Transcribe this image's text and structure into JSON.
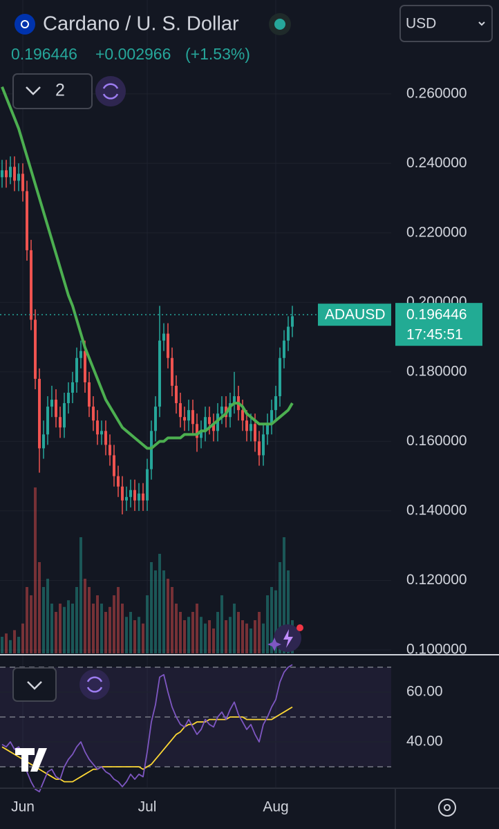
{
  "header": {
    "title": "Cardano / U. S. Dollar",
    "price": "0.196446",
    "change": "+0.002966",
    "change_pct": "(+1.53%)",
    "currency": "USD",
    "indicator_count": "2"
  },
  "chart_data": [
    {
      "type": "candlestick",
      "categories": [
        null,
        null,
        null,
        null,
        null,
        "Jun",
        null,
        null,
        null,
        null,
        null,
        null,
        null,
        null,
        null,
        null,
        null,
        null,
        null,
        null,
        null,
        null,
        null,
        null,
        null,
        null,
        null,
        null,
        null,
        null,
        null,
        null,
        null,
        null,
        null,
        "Jul",
        null,
        null,
        null,
        null,
        null,
        null,
        null,
        null,
        null,
        null,
        null,
        null,
        null,
        null,
        null,
        null,
        null,
        null,
        null,
        null,
        null,
        null,
        null,
        null,
        null,
        null,
        null,
        null,
        null,
        null,
        "Aug",
        null,
        null,
        null,
        null
      ],
      "candles": [
        [
          0.236,
          0.241,
          0.233,
          0.238
        ],
        [
          0.238,
          0.241,
          0.233,
          0.236
        ],
        [
          0.236,
          0.242,
          0.234,
          0.239
        ],
        [
          0.239,
          0.242,
          0.232,
          0.235
        ],
        [
          0.235,
          0.24,
          0.232,
          0.237
        ],
        [
          0.237,
          0.24,
          0.229,
          0.232
        ],
        [
          0.232,
          0.235,
          0.212,
          0.215
        ],
        [
          0.215,
          0.218,
          0.192,
          0.195
        ],
        [
          0.195,
          0.198,
          0.175,
          0.178
        ],
        [
          0.178,
          0.181,
          0.151,
          0.158
        ],
        [
          0.158,
          0.166,
          0.155,
          0.162
        ],
        [
          0.162,
          0.173,
          0.159,
          0.17
        ],
        [
          0.17,
          0.176,
          0.167,
          0.172
        ],
        [
          0.172,
          0.175,
          0.164,
          0.167
        ],
        [
          0.167,
          0.17,
          0.161,
          0.164
        ],
        [
          0.164,
          0.174,
          0.161,
          0.171
        ],
        [
          0.171,
          0.177,
          0.168,
          0.174
        ],
        [
          0.174,
          0.18,
          0.171,
          0.177
        ],
        [
          0.177,
          0.187,
          0.174,
          0.184
        ],
        [
          0.184,
          0.189,
          0.181,
          0.186
        ],
        [
          0.186,
          0.189,
          0.174,
          0.177
        ],
        [
          0.177,
          0.18,
          0.167,
          0.17
        ],
        [
          0.17,
          0.173,
          0.163,
          0.166
        ],
        [
          0.166,
          0.169,
          0.159,
          0.162
        ],
        [
          0.162,
          0.166,
          0.159,
          0.163
        ],
        [
          0.163,
          0.166,
          0.156,
          0.159
        ],
        [
          0.159,
          0.162,
          0.153,
          0.156
        ],
        [
          0.156,
          0.159,
          0.147,
          0.15
        ],
        [
          0.15,
          0.153,
          0.144,
          0.147
        ],
        [
          0.147,
          0.15,
          0.139,
          0.143
        ],
        [
          0.143,
          0.147,
          0.14,
          0.144
        ],
        [
          0.144,
          0.149,
          0.141,
          0.146
        ],
        [
          0.146,
          0.149,
          0.14,
          0.143
        ],
        [
          0.143,
          0.148,
          0.14,
          0.145
        ],
        [
          0.145,
          0.148,
          0.14,
          0.143
        ],
        [
          0.143,
          0.155,
          0.14,
          0.152
        ],
        [
          0.152,
          0.166,
          0.149,
          0.163
        ],
        [
          0.163,
          0.173,
          0.16,
          0.17
        ],
        [
          0.17,
          0.199,
          0.167,
          0.189
        ],
        [
          0.189,
          0.194,
          0.186,
          0.191
        ],
        [
          0.191,
          0.194,
          0.181,
          0.184
        ],
        [
          0.184,
          0.187,
          0.173,
          0.176
        ],
        [
          0.176,
          0.179,
          0.168,
          0.171
        ],
        [
          0.171,
          0.174,
          0.164,
          0.167
        ],
        [
          0.167,
          0.17,
          0.163,
          0.166
        ],
        [
          0.166,
          0.172,
          0.163,
          0.169
        ],
        [
          0.169,
          0.172,
          0.162,
          0.165
        ],
        [
          0.165,
          0.168,
          0.157,
          0.161
        ],
        [
          0.161,
          0.166,
          0.158,
          0.163
        ],
        [
          0.163,
          0.17,
          0.16,
          0.167
        ],
        [
          0.167,
          0.17,
          0.162,
          0.165
        ],
        [
          0.165,
          0.168,
          0.16,
          0.163
        ],
        [
          0.163,
          0.171,
          0.16,
          0.168
        ],
        [
          0.168,
          0.173,
          0.165,
          0.17
        ],
        [
          0.17,
          0.173,
          0.164,
          0.167
        ],
        [
          0.167,
          0.174,
          0.164,
          0.171
        ],
        [
          0.171,
          0.18,
          0.168,
          0.173
        ],
        [
          0.173,
          0.176,
          0.166,
          0.169
        ],
        [
          0.169,
          0.172,
          0.163,
          0.166
        ],
        [
          0.166,
          0.169,
          0.16,
          0.163
        ],
        [
          0.163,
          0.168,
          0.16,
          0.165
        ],
        [
          0.165,
          0.168,
          0.157,
          0.16
        ],
        [
          0.16,
          0.163,
          0.153,
          0.156
        ],
        [
          0.156,
          0.165,
          0.153,
          0.162
        ],
        [
          0.162,
          0.168,
          0.159,
          0.165
        ],
        [
          0.165,
          0.172,
          0.162,
          0.169
        ],
        [
          0.169,
          0.176,
          0.166,
          0.173
        ],
        [
          0.173,
          0.187,
          0.17,
          0.184
        ],
        [
          0.184,
          0.192,
          0.181,
          0.189
        ],
        [
          0.189,
          0.196,
          0.186,
          0.193
        ],
        [
          0.193,
          0.199,
          0.19,
          0.196
        ]
      ],
      "ma": [
        0.262,
        0.259,
        0.256,
        0.253,
        0.25,
        0.246,
        0.242,
        0.238,
        0.234,
        0.23,
        0.226,
        0.222,
        0.218,
        0.214,
        0.21,
        0.206,
        0.202,
        0.199,
        0.195,
        0.191,
        0.187,
        0.184,
        0.181,
        0.178,
        0.175,
        0.172,
        0.17,
        0.168,
        0.166,
        0.164,
        0.163,
        0.162,
        0.161,
        0.16,
        0.159,
        0.158,
        0.158,
        0.159,
        0.16,
        0.16,
        0.161,
        0.161,
        0.161,
        0.161,
        0.162,
        0.162,
        0.162,
        0.162,
        0.163,
        0.163,
        0.164,
        0.165,
        0.166,
        0.167,
        0.168,
        0.17,
        0.171,
        0.171,
        0.17,
        0.168,
        0.167,
        0.166,
        0.165,
        0.165,
        0.165,
        0.165,
        0.166,
        0.167,
        0.168,
        0.169,
        0.171
      ],
      "volume": [
        10,
        12,
        8,
        14,
        10,
        18,
        40,
        35,
        100,
        55,
        40,
        45,
        30,
        25,
        30,
        28,
        32,
        30,
        40,
        70,
        45,
        40,
        30,
        35,
        30,
        25,
        28,
        35,
        40,
        30,
        22,
        25,
        20,
        22,
        18,
        35,
        55,
        50,
        60,
        50,
        45,
        40,
        30,
        25,
        20,
        22,
        25,
        30,
        22,
        18,
        20,
        15,
        25,
        35,
        20,
        22,
        30,
        25,
        20,
        18,
        15,
        20,
        25,
        18,
        35,
        40,
        38,
        55,
        70,
        50,
        20
      ],
      "vlim": [
        0,
        100
      ],
      "ylim": [
        0.099,
        0.287
      ],
      "yticks": [
        {
          "value": 0.26,
          "label": "0.260000"
        },
        {
          "value": 0.24,
          "label": "0.240000"
        },
        {
          "value": 0.22,
          "label": "0.220000"
        },
        {
          "value": 0.2,
          "label": "0.200000"
        },
        {
          "value": 0.18,
          "label": "0.180000"
        },
        {
          "value": 0.16,
          "label": "0.160000"
        },
        {
          "value": 0.14,
          "label": "0.140000"
        },
        {
          "value": 0.12,
          "label": "0.120000"
        },
        {
          "value": 0.1,
          "label": "0.100000"
        }
      ],
      "grid": true,
      "symbol": "ADAUSD",
      "last_price": 0.196446,
      "countdown": "17:45:51",
      "up_color": "#26a69a",
      "down_color": "#ef5350",
      "ma_color": "#4caf50"
    },
    {
      "type": "line",
      "rsi": [
        39,
        38,
        40,
        37,
        38,
        35,
        28,
        24,
        21,
        20,
        24,
        28,
        29,
        26,
        25,
        30,
        33,
        35,
        38,
        40,
        36,
        33,
        31,
        29,
        30,
        28,
        27,
        25,
        24,
        22,
        24,
        27,
        25,
        27,
        26,
        36,
        48,
        55,
        66,
        67,
        60,
        54,
        50,
        47,
        46,
        49,
        46,
        43,
        45,
        49,
        47,
        46,
        50,
        52,
        49,
        53,
        56,
        51,
        48,
        45,
        47,
        43,
        40,
        47,
        50,
        54,
        57,
        64,
        68,
        70,
        71
      ],
      "rsi_ma": [
        38,
        37,
        36,
        35,
        34,
        33,
        32,
        31,
        30,
        29,
        28,
        27,
        26,
        25,
        25,
        24,
        24,
        24,
        25,
        26,
        27,
        28,
        29,
        29,
        30,
        30,
        30,
        30,
        30,
        30,
        30,
        30,
        30,
        30,
        29,
        30,
        31,
        33,
        35,
        37,
        39,
        41,
        43,
        44,
        46,
        47,
        47,
        48,
        48,
        48,
        49,
        49,
        49,
        49,
        49,
        50,
        50,
        50,
        50,
        49,
        49,
        49,
        49,
        49,
        49,
        49,
        50,
        51,
        52,
        53,
        54
      ],
      "ylim": [
        21.4,
        73.6
      ],
      "yticks": [
        {
          "value": 60,
          "label": "60.00"
        },
        {
          "value": 40,
          "label": "40.00"
        }
      ],
      "bands": [
        70,
        50,
        30
      ],
      "rsi_color": "#7e57c2",
      "rsi_ma_color": "#fdd835"
    }
  ]
}
